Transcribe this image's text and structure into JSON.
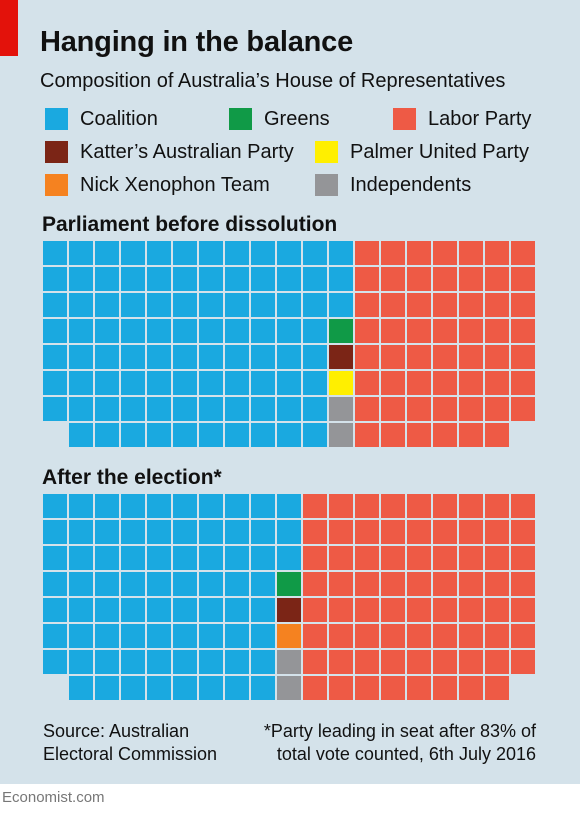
{
  "title": "Hanging in the balance",
  "subtitle": "Composition of Australia’s House of Representatives",
  "colors": {
    "accent": "#e3120b",
    "background": "#d4e2ea",
    "Coalition": "#1aa9e0",
    "Greens": "#109a47",
    "Labor Party": "#ee5a45",
    "Katter's Australian Party": "#7b2516",
    "Palmer United Party": "#ffef00",
    "Nick Xenophon Team": "#f58220",
    "Independents": "#949598"
  },
  "legend": [
    {
      "label": "Coalition",
      "color": "#1aa9e0"
    },
    {
      "label": "Greens",
      "color": "#109a47"
    },
    {
      "label": "Labor Party",
      "color": "#ee5a45"
    },
    {
      "label": "Katter’s Australian Party",
      "color": "#7b2516"
    },
    {
      "label": "Palmer United Party",
      "color": "#ffef00"
    },
    {
      "label": "Nick Xenophon Team",
      "color": "#f58220"
    },
    {
      "label": "Independents",
      "color": "#949598"
    }
  ],
  "chart_data": [
    {
      "type": "waffle",
      "title": "Parliament before dissolution",
      "rows": 8,
      "seats": [
        {
          "party": "Coalition",
          "value": 90
        },
        {
          "party": "Greens",
          "value": 1
        },
        {
          "party": "Katter's Australian Party",
          "value": 1
        },
        {
          "party": "Palmer United Party",
          "value": 1
        },
        {
          "party": "Independents",
          "value": 2
        },
        {
          "party": "Labor Party",
          "value": 55
        }
      ]
    },
    {
      "type": "waffle",
      "title": "After the election*",
      "rows": 8,
      "seats": [
        {
          "party": "Coalition",
          "value": 74
        },
        {
          "party": "Greens",
          "value": 1
        },
        {
          "party": "Katter's Australian Party",
          "value": 1
        },
        {
          "party": "Nick Xenophon Team",
          "value": 1
        },
        {
          "party": "Independents",
          "value": 2
        },
        {
          "party": "Labor Party",
          "value": 71
        }
      ]
    }
  ],
  "source": {
    "line1": "Source: Australian",
    "line2": "Electoral Commission"
  },
  "footnote": {
    "line1": "*Party leading in seat after 83% of",
    "line2": "total vote counted, 6th July 2016"
  },
  "brand": "Economist.com"
}
